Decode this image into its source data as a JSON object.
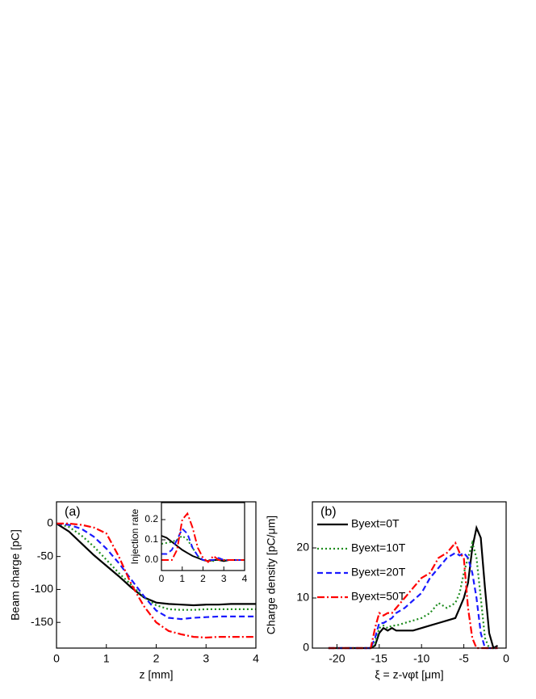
{
  "chart_data": [
    {
      "type": "line",
      "panel_label": "(a)",
      "x_label": "z [mm]",
      "y_label": "Beam charge [pC]",
      "x": [
        0,
        0.25,
        0.5,
        0.75,
        1,
        1.25,
        1.5,
        1.75,
        2,
        2.25,
        2.5,
        2.75,
        3,
        3.25,
        3.5,
        3.75,
        4
      ],
      "xlim": [
        0,
        4
      ],
      "xticks": [
        0,
        1,
        2,
        3,
        4
      ],
      "ylim": [
        -189,
        33
      ],
      "yticks": [
        0,
        -50,
        -100,
        -150
      ],
      "series": [
        {
          "color": "#000000",
          "dash": "solid",
          "values": [
            0,
            -12,
            -30,
            -48,
            -64,
            -80,
            -97,
            -112,
            -120,
            -122,
            -123,
            -124,
            -123,
            -123,
            -122,
            -122,
            -122
          ]
        },
        {
          "color": "#1e8c1e",
          "dash": "dotted",
          "values": [
            0,
            -5,
            -18,
            -35,
            -55,
            -75,
            -93,
            -112,
            -124,
            -130,
            -131,
            -131,
            -130,
            -130,
            -130,
            -130,
            -130
          ]
        },
        {
          "color": "#1a1aff",
          "dash": "dashed",
          "values": [
            0,
            -2,
            -8,
            -20,
            -38,
            -60,
            -85,
            -110,
            -132,
            -143,
            -145,
            -143,
            -142,
            -141,
            -141,
            -141,
            -141
          ]
        },
        {
          "color": "#ff0000",
          "dash": "dashdot",
          "values": [
            0,
            0,
            -2,
            -6,
            -15,
            -50,
            -92,
            -125,
            -150,
            -163,
            -168,
            -172,
            -173,
            -172,
            -172,
            -172,
            -172
          ]
        }
      ]
    },
    {
      "type": "line",
      "y_label": "Injection rate",
      "x": [
        0,
        0.25,
        0.5,
        0.75,
        1,
        1.25,
        1.5,
        1.75,
        2,
        2.25,
        2.5,
        2.75,
        3,
        3.25,
        3.5,
        3.75,
        4
      ],
      "xlim": [
        0,
        4
      ],
      "xticks": [
        0,
        1,
        2,
        3,
        4
      ],
      "ylim": [
        -0.052,
        0.284
      ],
      "yticks": [
        {
          "value": 0,
          "label": "0.0"
        },
        0.1,
        0.2
      ],
      "series": [
        {
          "color": "#000000",
          "dash": "solid",
          "values": [
            0.12,
            0.11,
            0.09,
            0.07,
            0.05,
            0.035,
            0.02,
            0.01,
            0,
            -0.005,
            0,
            0,
            -0.005,
            0,
            0,
            0,
            0
          ]
        },
        {
          "color": "#1e8c1e",
          "dash": "dotted",
          "values": [
            0.08,
            0.085,
            0.09,
            0.1,
            0.12,
            0.1,
            0.06,
            0.02,
            0,
            0,
            -0.005,
            0.005,
            0,
            0,
            0,
            0,
            0
          ]
        },
        {
          "color": "#1a1aff",
          "dash": "dashed",
          "values": [
            0.03,
            0.03,
            0.05,
            0.1,
            0.155,
            0.13,
            0.06,
            0.02,
            0,
            0,
            0,
            0.01,
            0,
            0,
            0,
            0,
            0
          ]
        },
        {
          "color": "#ff0000",
          "dash": "dashdot",
          "values": [
            0,
            0,
            0,
            0.05,
            0.2,
            0.23,
            0.16,
            0.06,
            0.01,
            -0.01,
            0.02,
            0,
            0,
            0,
            0,
            0,
            0
          ]
        }
      ]
    },
    {
      "type": "line",
      "panel_label": "(b)",
      "x_label": "ξ = z-vφt [μm]",
      "y_label": "Charge density [pC/μm]",
      "x": [
        -21,
        -16,
        -15.5,
        -15,
        -14.5,
        -14,
        -13.5,
        -13,
        -12,
        -11,
        -10,
        -9,
        -8,
        -7,
        -6,
        -5.5,
        -5,
        -4.5,
        -4,
        -3.5,
        -3,
        -2.5,
        -2,
        -1.5,
        -1
      ],
      "xlim": [
        -22.9,
        0
      ],
      "xticks": [
        -20,
        -15,
        -10,
        -5,
        0
      ],
      "ylim": [
        0,
        29.2
      ],
      "yticks": [
        0,
        10,
        20
      ],
      "legend": "upper left",
      "series": [
        {
          "name": "Byext=0T",
          "color": "#000000",
          "dash": "solid",
          "values": [
            0,
            0,
            0.5,
            3,
            4,
            3.5,
            4,
            3.5,
            3.5,
            3.5,
            4,
            4.5,
            5,
            5.5,
            6,
            8,
            10,
            13,
            20,
            24,
            22,
            12,
            3,
            0,
            0.5
          ]
        },
        {
          "name": "Byext=10T",
          "color": "#1e8c1e",
          "dash": "dotted",
          "values": [
            0,
            0,
            1,
            4,
            4.5,
            4,
            4.5,
            4.5,
            5,
            5.5,
            6,
            7,
            9,
            8,
            9,
            11,
            15,
            18,
            21,
            18,
            10,
            2,
            0,
            0,
            0
          ]
        },
        {
          "name": "Byext=20T",
          "color": "#1a1aff",
          "dash": "dashed",
          "values": [
            0,
            0,
            2,
            5,
            5,
            5.5,
            6,
            7,
            8,
            9.5,
            11,
            14,
            16,
            18,
            19,
            18.5,
            19,
            18,
            15,
            10,
            3,
            0,
            0,
            0,
            0
          ]
        },
        {
          "name": "Byext=50T",
          "color": "#ff0000",
          "dash": "dashdot",
          "values": [
            0,
            0,
            4,
            7,
            6.5,
            7,
            7,
            8,
            10,
            12,
            14,
            15,
            18,
            19,
            21,
            19,
            18,
            8,
            2,
            0,
            0,
            0,
            0,
            0,
            0
          ]
        }
      ]
    }
  ]
}
